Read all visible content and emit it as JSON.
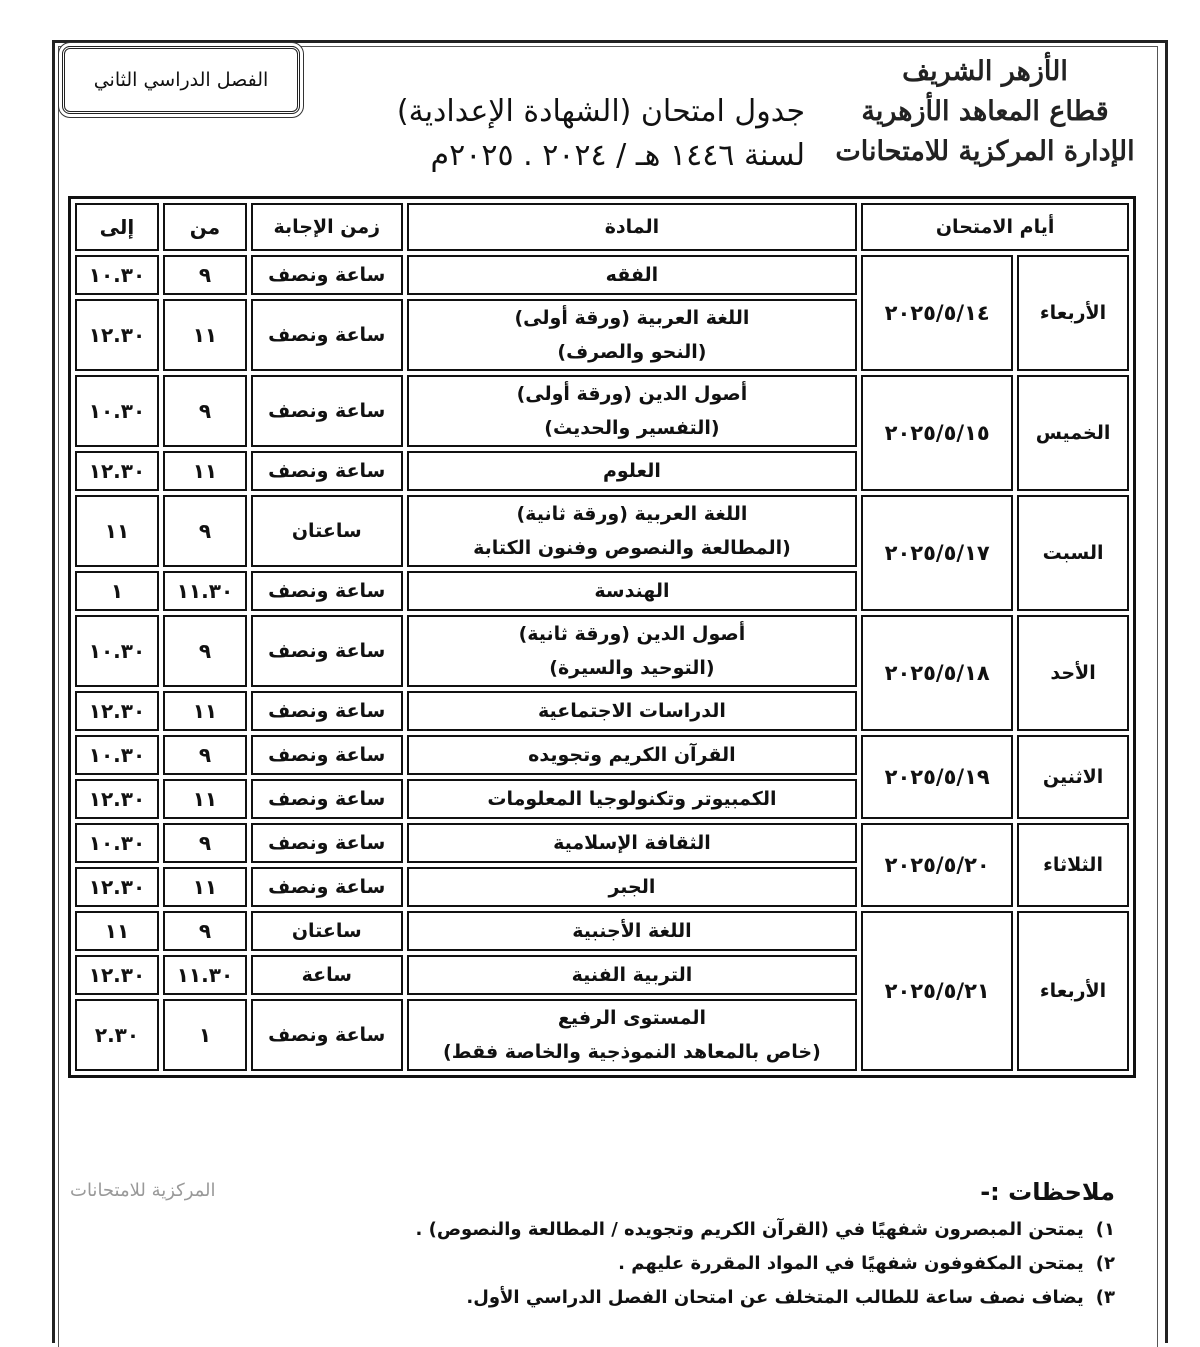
{
  "header": {
    "logo_lines": [
      "الأزهر الشريف",
      "قطاع المعاهد الأزهرية",
      "الإدارة المركزية للامتحانات"
    ],
    "title": "جدول امتحان (الشهادة الإعدادية)",
    "year": "لسنة ١٤٤٦ هـ / ٢٠٢٤ . ٢٠٢٥م",
    "term": "الفصل الدراسي الثاني"
  },
  "table": {
    "headers": {
      "days": "أيام الامتحان",
      "subject": "المادة",
      "duration": "زمن الإجابة",
      "from": "من",
      "to": "إلى"
    },
    "groups": [
      {
        "day": "الأربعاء",
        "date": "٢٠٢٥/٥/١٤",
        "rows": [
          {
            "subject": "الفقه",
            "duration": "ساعة ونصف",
            "from": "٩",
            "to": "١٠.٣٠"
          },
          {
            "subject": "اللغة العربية (ورقة أولى)",
            "subject2": "(النحو والصرف)",
            "duration": "ساعة ونصف",
            "from": "١١",
            "to": "١٢.٣٠"
          }
        ]
      },
      {
        "day": "الخميس",
        "date": "٢٠٢٥/٥/١٥",
        "rows": [
          {
            "subject": "أصول الدين (ورقة أولى)",
            "subject2": "(التفسير والحديث)",
            "duration": "ساعة ونصف",
            "from": "٩",
            "to": "١٠.٣٠"
          },
          {
            "subject": "العلوم",
            "duration": "ساعة ونصف",
            "from": "١١",
            "to": "١٢.٣٠"
          }
        ]
      },
      {
        "day": "السبت",
        "date": "٢٠٢٥/٥/١٧",
        "rows": [
          {
            "subject": "اللغة العربية (ورقة ثانية)",
            "subject2": "(المطالعة والنصوص وفنون الكتابة",
            "duration": "ساعتان",
            "from": "٩",
            "to": "١١"
          },
          {
            "subject": "الهندسة",
            "duration": "ساعة ونصف",
            "from": "١١.٣٠",
            "to": "١"
          }
        ]
      },
      {
        "day": "الأحد",
        "date": "٢٠٢٥/٥/١٨",
        "rows": [
          {
            "subject": "أصول الدين (ورقة ثانية)",
            "subject2": "(التوحيد والسيرة)",
            "duration": "ساعة ونصف",
            "from": "٩",
            "to": "١٠.٣٠"
          },
          {
            "subject": "الدراسات الاجتماعية",
            "duration": "ساعة ونصف",
            "from": "١١",
            "to": "١٢.٣٠"
          }
        ]
      },
      {
        "day": "الاثنين",
        "date": "٢٠٢٥/٥/١٩",
        "rows": [
          {
            "subject": "القرآن الكريم وتجويده",
            "duration": "ساعة ونصف",
            "from": "٩",
            "to": "١٠.٣٠"
          },
          {
            "subject": "الكمبيوتر وتكنولوجيا المعلومات",
            "duration": "ساعة ونصف",
            "from": "١١",
            "to": "١٢.٣٠"
          }
        ]
      },
      {
        "day": "الثلاثاء",
        "date": "٢٠٢٥/٥/٢٠",
        "rows": [
          {
            "subject": "الثقافة الإسلامية",
            "duration": "ساعة ونصف",
            "from": "٩",
            "to": "١٠.٣٠"
          },
          {
            "subject": "الجبر",
            "duration": "ساعة ونصف",
            "from": "١١",
            "to": "١٢.٣٠"
          }
        ]
      },
      {
        "day": "الأربعاء",
        "date": "٢٠٢٥/٥/٢١",
        "rows": [
          {
            "subject": "اللغة الأجنبية",
            "duration": "ساعتان",
            "from": "٩",
            "to": "١١"
          },
          {
            "subject": "التربية الفنية",
            "duration": "ساعة",
            "from": "١١.٣٠",
            "to": "١٢.٣٠"
          },
          {
            "subject": "المستوى الرفيع",
            "subject2": "(خاص بالمعاهد النموذجية والخاصة فقط)",
            "duration": "ساعة ونصف",
            "from": "١",
            "to": "٢.٣٠"
          }
        ]
      }
    ]
  },
  "notes": {
    "title": "ملاحظات :-",
    "items": [
      {
        "num": "١)",
        "text": "يمتحن المبصرون شفهيًا في (القرآن الكريم وتجويده / المطالعة والنصوص) ."
      },
      {
        "num": "٢)",
        "text": "يمتحن المكفوفون شفهيًا في المواد المقررة عليهم ."
      },
      {
        "num": "٣)",
        "text": "يضاف نصف ساعة للطالب المتخلف عن امتحان الفصل الدراسي الأول."
      }
    ],
    "stamp": "المركزية للامتحانات"
  }
}
